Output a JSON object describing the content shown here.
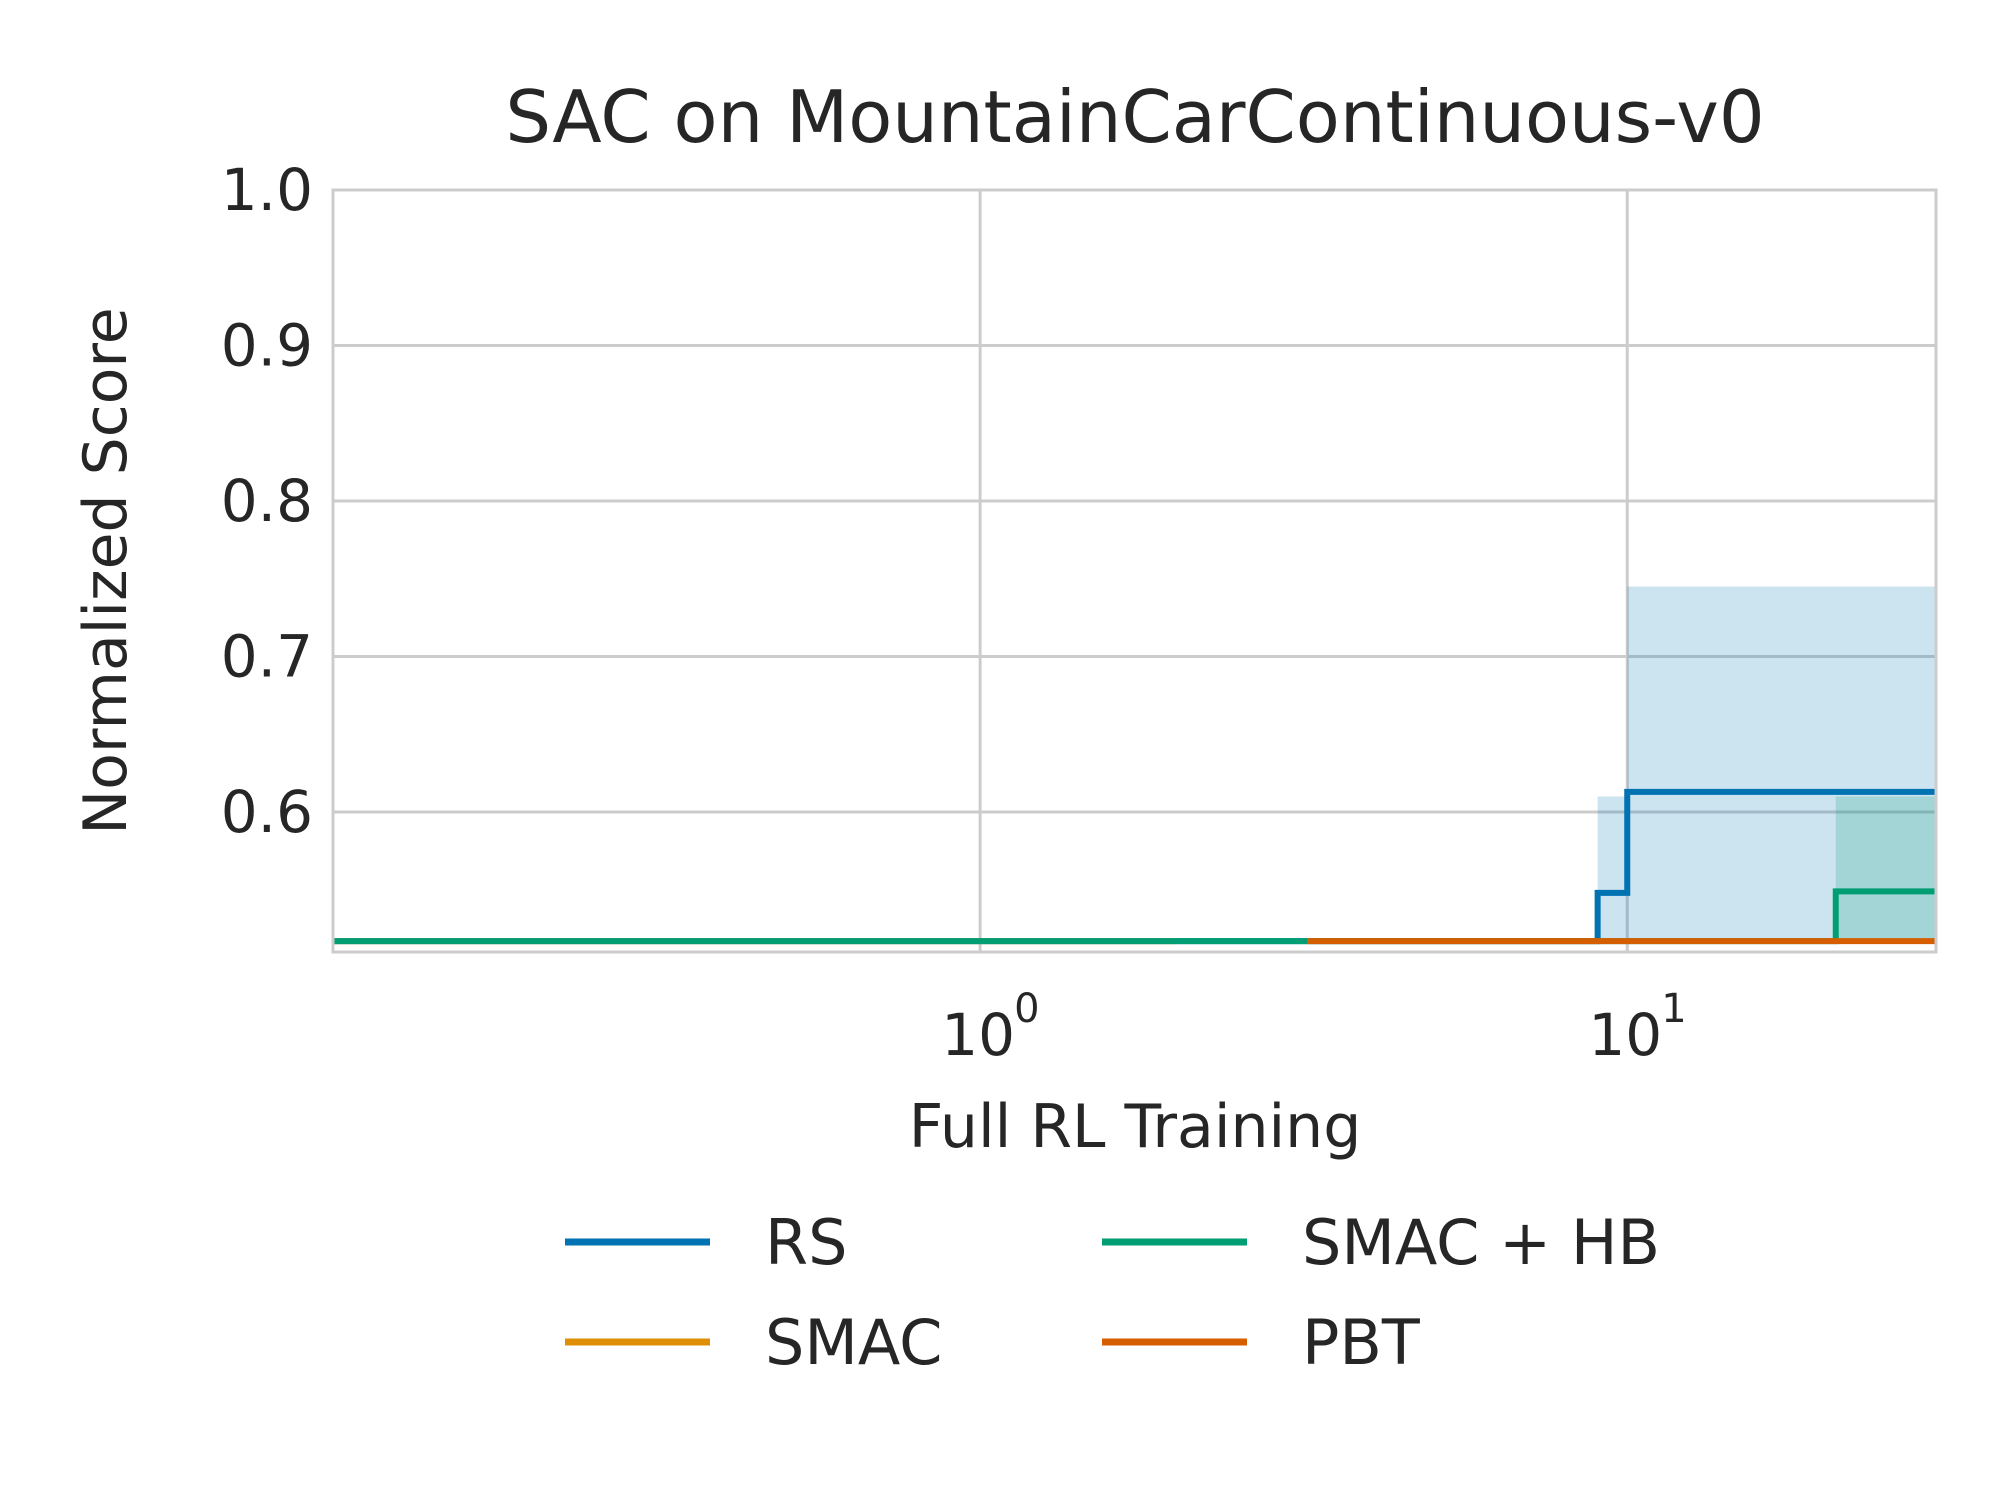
{
  "chart_data": {
    "type": "line",
    "title": "SAC on MountainCarContinuous-v0",
    "xlabel": "Full RL Training",
    "ylabel": "Normalized Score",
    "x_scale": "log",
    "xlim": [
      0.1,
      30
    ],
    "ylim": [
      0.51,
      1.0
    ],
    "x_ticks": [
      {
        "value": 1,
        "base": "10",
        "exp": "0"
      },
      {
        "value": 10,
        "base": "10",
        "exp": "1"
      }
    ],
    "y_ticks": [
      0.6,
      0.7,
      0.8,
      0.9,
      1.0
    ],
    "y_tick_labels": [
      "0.6",
      "0.7",
      "0.8",
      "0.9",
      "1.0"
    ],
    "grid": true,
    "legend": {
      "placement": "below",
      "columns": 2
    },
    "series": [
      {
        "name": "RS",
        "color": "#0173b2",
        "steps": [
          [
            0.1,
            0.517
          ],
          [
            9.0,
            0.548
          ],
          [
            10.0,
            0.613
          ],
          [
            30,
            0.613
          ]
        ],
        "band": [
          {
            "x": [
              9.0,
              10.0
            ],
            "low": 0.517,
            "high": 0.61
          },
          {
            "x": [
              10.0,
              30
            ],
            "low": 0.517,
            "high": 0.745
          }
        ]
      },
      {
        "name": "SMAC",
        "color": "#de8f05",
        "steps": [
          [
            0.1,
            0.517
          ],
          [
            2.0,
            0.517
          ]
        ]
      },
      {
        "name": "SMAC + HB",
        "color": "#029e73",
        "steps": [
          [
            0.1,
            0.517
          ],
          [
            21.0,
            0.549
          ],
          [
            30,
            0.549
          ]
        ],
        "band": [
          {
            "x": [
              21.0,
              30
            ],
            "low": 0.517,
            "high": 0.61
          }
        ]
      },
      {
        "name": "PBT",
        "color": "#d55e00",
        "steps": [
          [
            3.2,
            0.517
          ],
          [
            30,
            0.517
          ]
        ]
      }
    ]
  }
}
